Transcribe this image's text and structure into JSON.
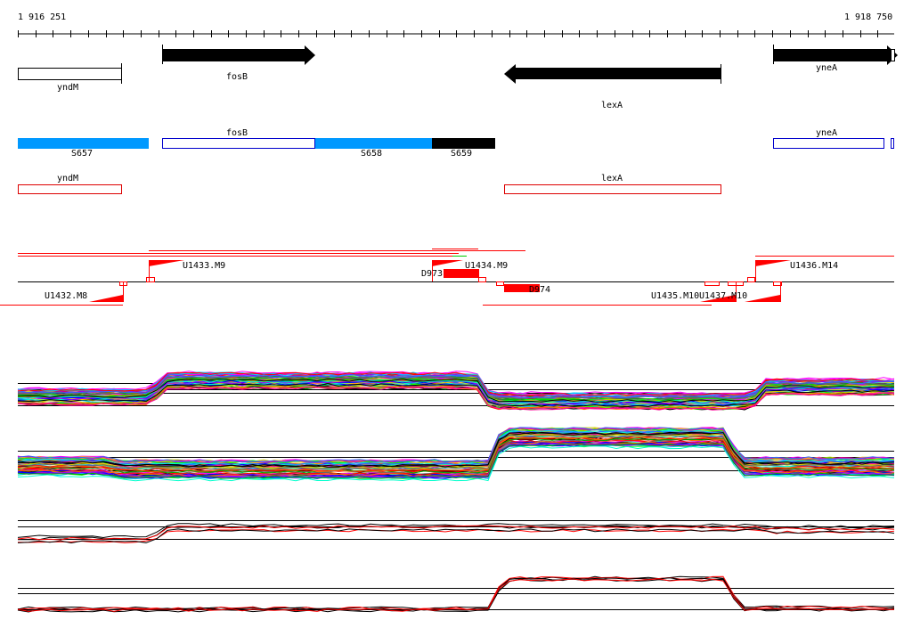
{
  "ruler": {
    "start_label": "1 916 251",
    "end_label": "1 918 750"
  },
  "genes": {
    "yndM": "yndM",
    "fosB": "fosB",
    "lexA": "lexA",
    "yneA": "yneA"
  },
  "segments": {
    "s657": "S657",
    "s658": "S658",
    "s659": "S659",
    "fosB": "fosB",
    "yneA": "yneA"
  },
  "annotations": {
    "yndM": "yndM",
    "lexA": "lexA"
  },
  "features": {
    "u1432": "U1432.M8",
    "u1433": "U1433.M9",
    "u1434": "U1434.M9",
    "u1435": "U1435.M10",
    "u1437": "U1437.M10",
    "u1436": "U1436.M14",
    "d973": "D973",
    "d974": "D974"
  },
  "colors": {
    "gene": "#000000",
    "segment_blue": "#0099ff",
    "outline_blue": "#0000cc",
    "annotation_red": "#dd0000",
    "feature_red": "#ff0000"
  }
}
